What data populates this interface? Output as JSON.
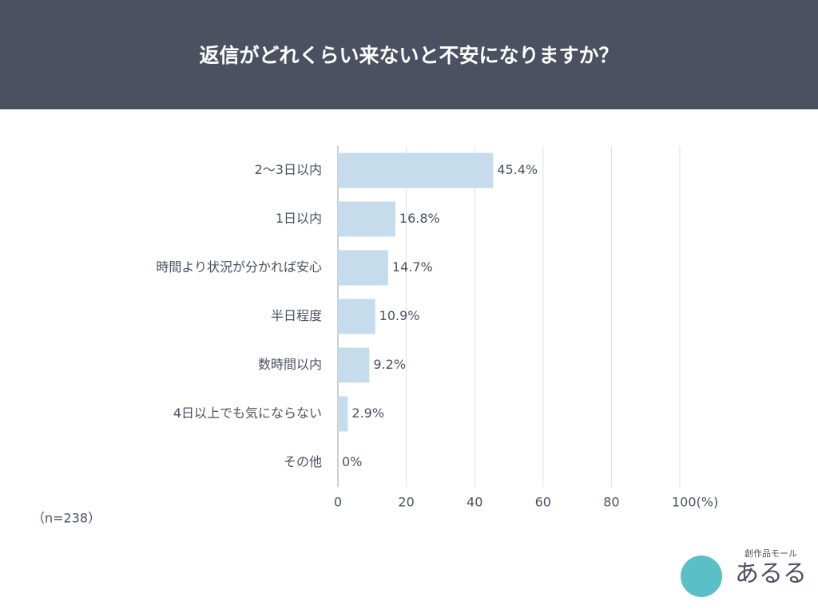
{
  "chart_data": {
    "type": "bar",
    "orientation": "horizontal",
    "title": "返信がどれくらい来ないと不安になりますか？",
    "categories": [
      "2～3日以内",
      "1日以内",
      "時間より状況が分かれば安心",
      "半日程度",
      "数時間以内",
      "4日以上でも気にならない",
      "その他"
    ],
    "values": [
      45.4,
      16.8,
      14.7,
      10.9,
      9.2,
      2.9,
      0
    ],
    "value_labels": [
      "45.4%",
      "16.8%",
      "14.7%",
      "10.9%",
      "9.2%",
      "2.9%",
      "0%"
    ],
    "color": "#c5dced",
    "xlim": [
      0,
      100
    ],
    "xticks": [
      0,
      20,
      40,
      60,
      80,
      {
        "value": 100,
        "label": "100(%)"
      }
    ],
    "grid": true,
    "note": "（n=238）"
  },
  "logo": {
    "tagline": "創作品モール",
    "name": "あるる"
  }
}
